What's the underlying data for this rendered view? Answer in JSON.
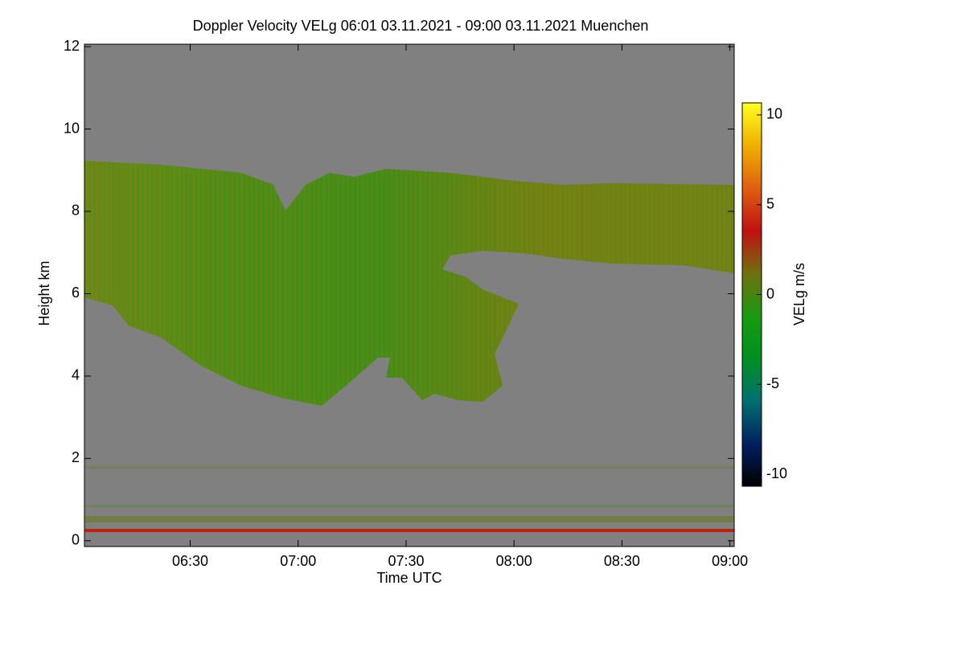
{
  "chart_data": {
    "type": "heatmap",
    "title": "Doppler Velocity VELg   06:01 03.11.2021 - 09:00 03.11.2021 Muenchen",
    "xlabel": "Time UTC",
    "ylabel": "Height km",
    "xlim": [
      6.01,
      9.02
    ],
    "xticks": [
      {
        "value": 6.5,
        "label": "06:30"
      },
      {
        "value": 7.0,
        "label": "07:00"
      },
      {
        "value": 7.5,
        "label": "07:30"
      },
      {
        "value": 8.0,
        "label": "08:00"
      },
      {
        "value": 8.5,
        "label": "08:30"
      },
      {
        "value": 9.0,
        "label": "09:00"
      }
    ],
    "ylim": [
      -0.14,
      12.06
    ],
    "yticks": [
      0,
      2,
      4,
      6,
      8,
      10,
      12
    ],
    "background": "#808080",
    "colorbar": {
      "label": "VELg m/s",
      "lim": [
        -10.67,
        10.67
      ],
      "ticks": [
        -10,
        -5,
        0,
        5,
        10
      ],
      "colors": [
        "#000000",
        "#002060",
        "#007070",
        "#009020",
        "#1a9a10",
        "#707010",
        "#c01010",
        "#e06010",
        "#f0b000",
        "#ffff20"
      ]
    }
  }
}
